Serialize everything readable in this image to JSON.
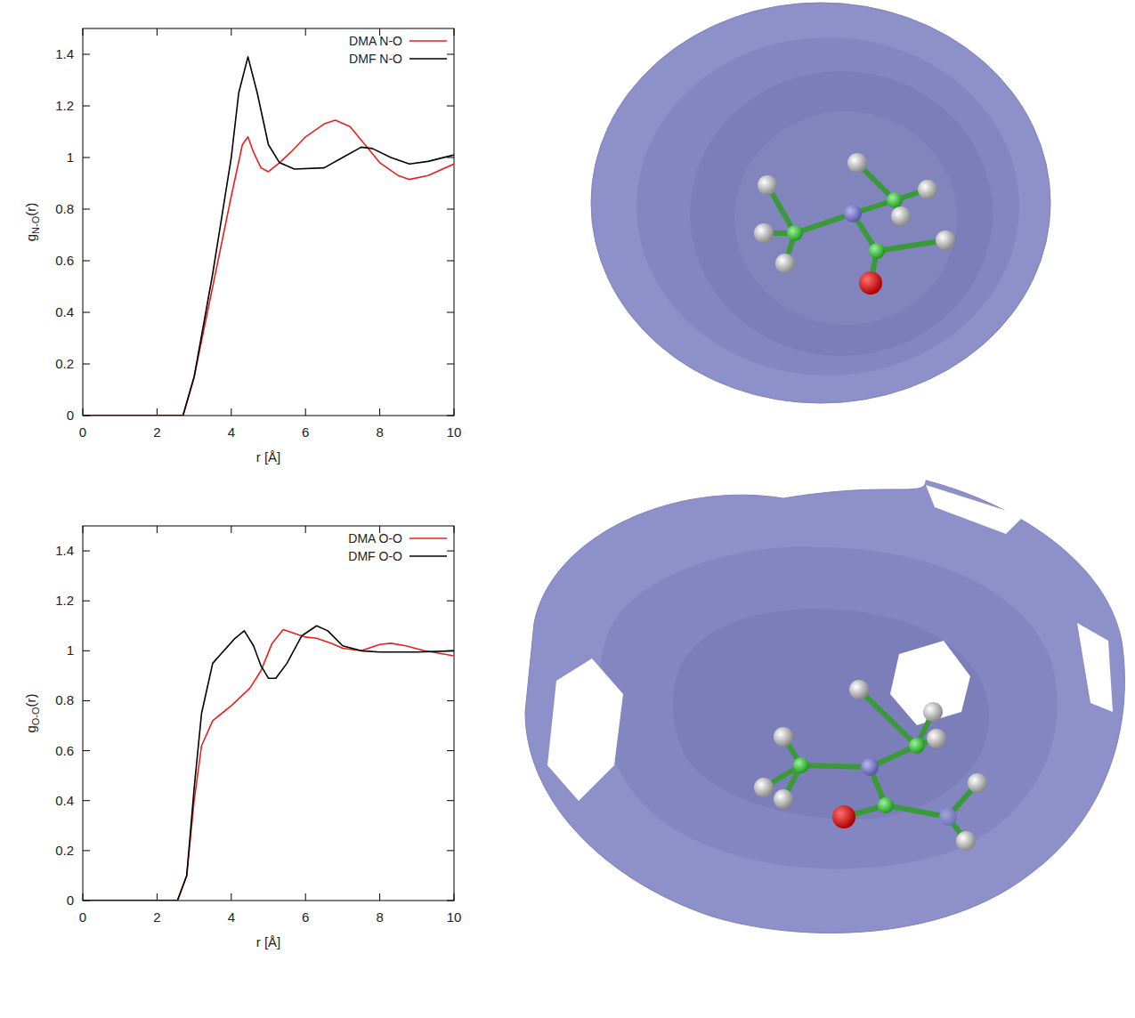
{
  "chart_data": [
    {
      "type": "line",
      "xlabel": "r [Å]",
      "ylabel": [
        "g",
        "N-O",
        "(r)"
      ],
      "xlim": [
        0,
        10
      ],
      "ylim": [
        0,
        1.5
      ],
      "xticks": [
        0,
        2,
        4,
        6,
        8,
        10
      ],
      "yticks": [
        0,
        0.2,
        0.4,
        0.6,
        0.8,
        1,
        1.2,
        1.4
      ],
      "legend": "top-right",
      "series": [
        {
          "name": "DMA N-O",
          "color": "#e8211c",
          "x": [
            0,
            2.7,
            3.0,
            3.5,
            4.0,
            4.3,
            4.45,
            4.6,
            4.8,
            5.0,
            5.3,
            5.6,
            6.0,
            6.5,
            6.8,
            7.2,
            7.6,
            8.0,
            8.5,
            8.8,
            9.3,
            10
          ],
          "values": [
            0,
            0,
            0.15,
            0.5,
            0.85,
            1.05,
            1.08,
            1.02,
            0.96,
            0.945,
            0.98,
            1.02,
            1.08,
            1.13,
            1.145,
            1.12,
            1.05,
            0.98,
            0.93,
            0.915,
            0.93,
            0.975
          ]
        },
        {
          "name": "DMF N-O",
          "color": "#000000",
          "x": [
            0,
            2.7,
            3.0,
            3.5,
            4.0,
            4.2,
            4.45,
            4.7,
            5.0,
            5.3,
            5.7,
            6.5,
            7.0,
            7.5,
            7.8,
            8.3,
            8.8,
            9.3,
            10
          ],
          "values": [
            0,
            0,
            0.15,
            0.55,
            1.0,
            1.25,
            1.39,
            1.25,
            1.05,
            0.98,
            0.955,
            0.96,
            1.0,
            1.04,
            1.035,
            1.0,
            0.975,
            0.985,
            1.01
          ]
        }
      ]
    },
    {
      "type": "line",
      "xlabel": "r [Å]",
      "ylabel": [
        "g",
        "O-O",
        "(r)"
      ],
      "xlim": [
        0,
        10
      ],
      "ylim": [
        0,
        1.5
      ],
      "xticks": [
        0,
        2,
        4,
        6,
        8,
        10
      ],
      "yticks": [
        0,
        0.2,
        0.4,
        0.6,
        0.8,
        1,
        1.2,
        1.4
      ],
      "legend": "top-right",
      "series": [
        {
          "name": "DMA O-O",
          "color": "#e8211c",
          "x": [
            0,
            2.55,
            2.8,
            3.0,
            3.2,
            3.5,
            4.0,
            4.5,
            4.8,
            5.1,
            5.4,
            5.7,
            6.0,
            6.3,
            6.7,
            7.0,
            7.5,
            8.0,
            8.3,
            8.7,
            9.2,
            10
          ],
          "values": [
            0,
            0,
            0.1,
            0.4,
            0.62,
            0.72,
            0.78,
            0.85,
            0.92,
            1.03,
            1.085,
            1.07,
            1.055,
            1.05,
            1.03,
            1.01,
            1.0,
            1.025,
            1.03,
            1.02,
            1.0,
            0.98
          ]
        },
        {
          "name": "DMF O-O",
          "color": "#000000",
          "x": [
            0,
            2.55,
            2.8,
            3.0,
            3.2,
            3.5,
            3.8,
            4.1,
            4.35,
            4.6,
            4.8,
            5.0,
            5.2,
            5.5,
            5.9,
            6.3,
            6.6,
            7.0,
            7.5,
            8.0,
            9.0,
            10
          ],
          "values": [
            0,
            0,
            0.1,
            0.45,
            0.75,
            0.95,
            1.0,
            1.05,
            1.08,
            1.02,
            0.94,
            0.89,
            0.89,
            0.95,
            1.06,
            1.1,
            1.08,
            1.02,
            1.0,
            0.995,
            0.995,
            1.0
          ]
        }
      ]
    }
  ]
}
